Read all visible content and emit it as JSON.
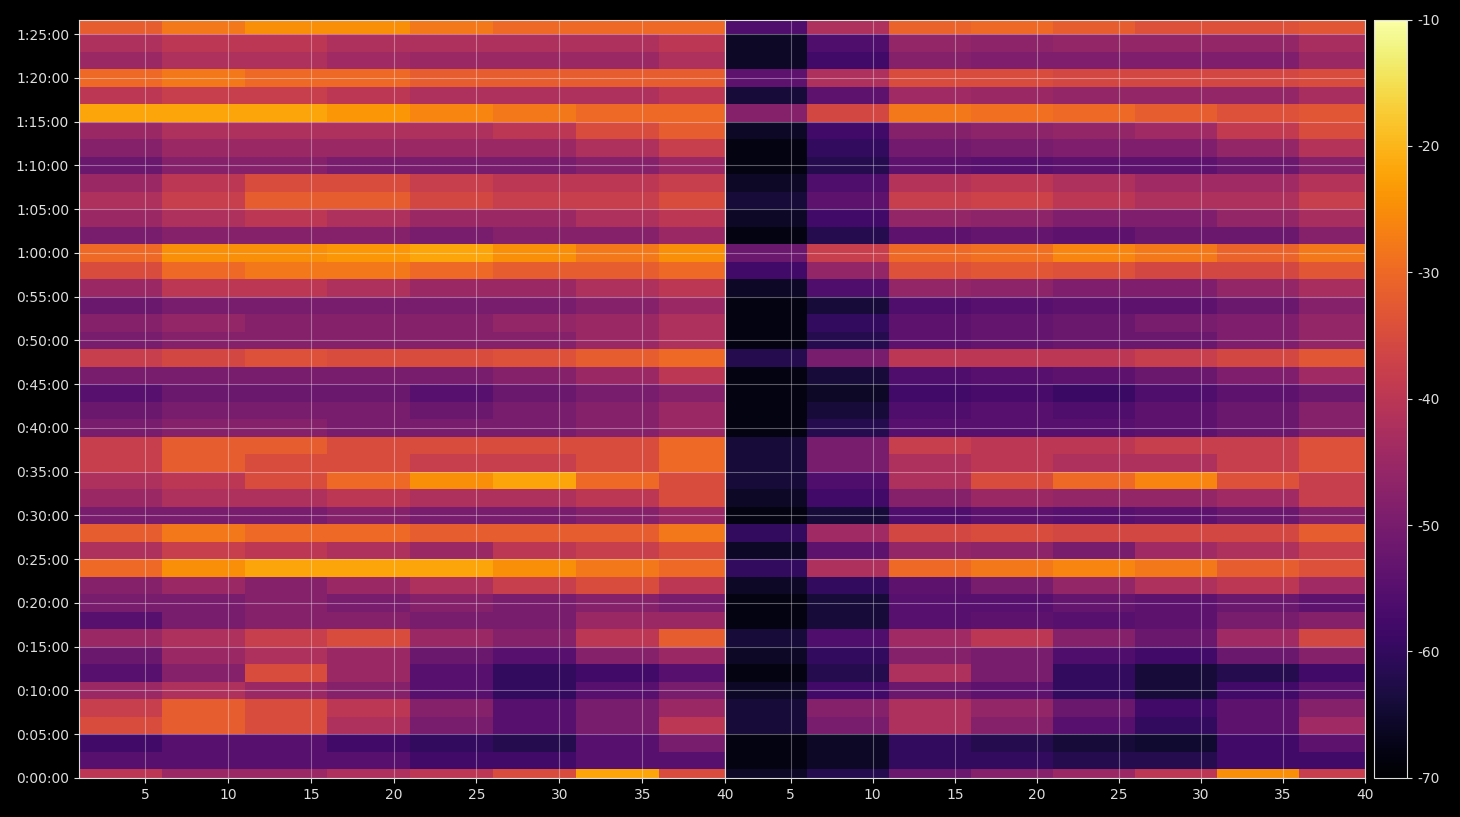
{
  "chart_data": [
    {
      "type": "heatmap",
      "color": "inferno",
      "grid": true,
      "tick_labels": true,
      "x": [
        3.5,
        8.5,
        13.5,
        18.5,
        23.5,
        28.5,
        33.5,
        38.5
      ],
      "y": [
        0,
        120,
        240,
        360,
        480,
        600,
        720,
        840,
        960,
        1080,
        1200,
        1320,
        1440,
        1560,
        1680,
        1800,
        1920,
        2040,
        2160,
        2280,
        2400,
        2520,
        2640,
        2760,
        2880,
        3000,
        3120,
        3240,
        3360,
        3480,
        3600,
        3720,
        3840,
        3960,
        4080,
        4200,
        4320,
        4440,
        4560,
        4680,
        4800,
        4920,
        5040,
        5160
      ],
      "xlim": [
        1,
        40
      ],
      "xticks": [
        5,
        10,
        15,
        20,
        25,
        30,
        35,
        40
      ],
      "ylim": [
        0,
        5200
      ],
      "yticks": [
        {
          "value": 0,
          "label": "0:00:00"
        },
        {
          "value": 300,
          "label": "0:05:00"
        },
        {
          "value": 600,
          "label": "0:10:00"
        },
        {
          "value": 900,
          "label": "0:15:00"
        },
        {
          "value": 1200,
          "label": "0:20:00"
        },
        {
          "value": 1500,
          "label": "0:25:00"
        },
        {
          "value": 1800,
          "label": "0:30:00"
        },
        {
          "value": 2100,
          "label": "0:35:00"
        },
        {
          "value": 2400,
          "label": "0:40:00"
        },
        {
          "value": 2700,
          "label": "0:45:00"
        },
        {
          "value": 3000,
          "label": "0:50:00"
        },
        {
          "value": 3300,
          "label": "0:55:00"
        },
        {
          "value": 3600,
          "label": "1:00:00"
        },
        {
          "value": 3900,
          "label": "1:05:00"
        },
        {
          "value": 4200,
          "label": "1:10:00"
        },
        {
          "value": 4500,
          "label": "1:15:00"
        },
        {
          "value": 4800,
          "label": "1:20:00"
        },
        {
          "value": 5100,
          "label": "1:25:00"
        }
      ],
      "color_range": [
        -70,
        -10
      ],
      "values": [
        [
          -40,
          -45,
          -45,
          -42,
          -40,
          -35,
          -22,
          -35
        ],
        [
          -55,
          -55,
          -55,
          -55,
          -58,
          -58,
          -55,
          -55
        ],
        [
          -58,
          -55,
          -55,
          -58,
          -60,
          -62,
          -55,
          -50
        ],
        [
          -35,
          -32,
          -35,
          -42,
          -50,
          -55,
          -50,
          -40
        ],
        [
          -38,
          -32,
          -35,
          -40,
          -48,
          -55,
          -50,
          -45
        ],
        [
          -45,
          -42,
          -45,
          -48,
          -55,
          -60,
          -55,
          -50
        ],
        [
          -55,
          -48,
          -35,
          -45,
          -55,
          -60,
          -58,
          -55
        ],
        [
          -52,
          -45,
          -42,
          -45,
          -52,
          -55,
          -48,
          -45
        ],
        [
          -45,
          -42,
          -38,
          -35,
          -45,
          -48,
          -40,
          -32
        ],
        [
          -55,
          -50,
          -48,
          -48,
          -50,
          -50,
          -45,
          -45
        ],
        [
          -50,
          -50,
          -48,
          -50,
          -48,
          -50,
          -48,
          -50
        ],
        [
          -48,
          -45,
          -48,
          -45,
          -42,
          -38,
          -35,
          -40
        ],
        [
          -30,
          -25,
          -22,
          -22,
          -22,
          -25,
          -28,
          -30
        ],
        [
          -42,
          -38,
          -40,
          -42,
          -45,
          -40,
          -38,
          -35
        ],
        [
          -32,
          -28,
          -30,
          -30,
          -32,
          -32,
          -32,
          -28
        ],
        [
          -50,
          -50,
          -50,
          -48,
          -50,
          -50,
          -48,
          -45
        ],
        [
          -45,
          -42,
          -42,
          -40,
          -42,
          -42,
          -40,
          -35
        ],
        [
          -42,
          -40,
          -35,
          -30,
          -25,
          -22,
          -30,
          -35
        ],
        [
          -38,
          -32,
          -35,
          -35,
          -38,
          -38,
          -35,
          -30
        ],
        [
          -38,
          -32,
          -32,
          -35,
          -35,
          -35,
          -35,
          -30
        ],
        [
          -50,
          -48,
          -48,
          -50,
          -50,
          -50,
          -48,
          -45
        ],
        [
          -52,
          -50,
          -50,
          -50,
          -52,
          -50,
          -48,
          -45
        ],
        [
          -55,
          -52,
          -52,
          -52,
          -55,
          -52,
          -50,
          -48
        ],
        [
          -50,
          -50,
          -50,
          -50,
          -50,
          -48,
          -45,
          -40
        ],
        [
          -38,
          -36,
          -34,
          -35,
          -35,
          -34,
          -32,
          -30
        ],
        [
          -50,
          -48,
          -48,
          -48,
          -48,
          -48,
          -45,
          -42
        ],
        [
          -48,
          -46,
          -48,
          -48,
          -48,
          -46,
          -45,
          -42
        ],
        [
          -52,
          -50,
          -50,
          -50,
          -50,
          -50,
          -48,
          -45
        ],
        [
          -45,
          -40,
          -40,
          -42,
          -45,
          -45,
          -42,
          -40
        ],
        [
          -35,
          -30,
          -28,
          -28,
          -30,
          -32,
          -32,
          -30
        ],
        [
          -30,
          -25,
          -25,
          -24,
          -22,
          -25,
          -28,
          -25
        ],
        [
          -50,
          -48,
          -48,
          -48,
          -50,
          -48,
          -48,
          -45
        ],
        [
          -45,
          -42,
          -40,
          -42,
          -45,
          -45,
          -42,
          -40
        ],
        [
          -42,
          -38,
          -32,
          -32,
          -36,
          -38,
          -38,
          -35
        ],
        [
          -45,
          -40,
          -35,
          -35,
          -38,
          -40,
          -40,
          -38
        ],
        [
          -52,
          -48,
          -48,
          -50,
          -50,
          -50,
          -48,
          -45
        ],
        [
          -48,
          -45,
          -45,
          -45,
          -45,
          -45,
          -42,
          -38
        ],
        [
          -45,
          -42,
          -42,
          -42,
          -42,
          -40,
          -35,
          -32
        ],
        [
          -22,
          -22,
          -22,
          -24,
          -26,
          -28,
          -30,
          -30
        ],
        [
          -40,
          -38,
          -38,
          -40,
          -42,
          -42,
          -42,
          -40
        ],
        [
          -30,
          -28,
          -30,
          -30,
          -32,
          -32,
          -32,
          -32
        ],
        [
          -45,
          -42,
          -42,
          -44,
          -45,
          -45,
          -45,
          -42
        ],
        [
          -42,
          -40,
          -40,
          -42,
          -42,
          -42,
          -42,
          -40
        ],
        [
          -32,
          -28,
          -25,
          -25,
          -28,
          -30,
          -30,
          -30
        ]
      ]
    },
    {
      "type": "heatmap",
      "color": "inferno",
      "grid": true,
      "tick_labels": "x",
      "x": [
        3.5,
        8.5,
        13.5,
        18.5,
        23.5,
        28.5,
        33.5,
        38.5
      ],
      "y": [
        0,
        120,
        240,
        360,
        480,
        600,
        720,
        840,
        960,
        1080,
        1200,
        1320,
        1440,
        1560,
        1680,
        1800,
        1920,
        2040,
        2160,
        2280,
        2400,
        2520,
        2640,
        2760,
        2880,
        3000,
        3120,
        3240,
        3360,
        3480,
        3600,
        3720,
        3840,
        3960,
        4080,
        4200,
        4320,
        4440,
        4560,
        4680,
        4800,
        4920,
        5040,
        5160
      ],
      "xlim": [
        1,
        40
      ],
      "xticks": [
        5,
        10,
        15,
        20,
        25,
        30,
        35,
        40
      ],
      "ylim": [
        0,
        5200
      ],
      "yticks": [
        0,
        300,
        600,
        900,
        1200,
        1500,
        1800,
        2100,
        2400,
        2700,
        3000,
        3300,
        3600,
        3900,
        4200,
        4500,
        4800,
        5100
      ],
      "color_range": [
        -70,
        -10
      ],
      "color_ticks": [
        -70,
        -60,
        -50,
        -40,
        -30,
        -20,
        -10
      ],
      "values": [
        [
          -66,
          -62,
          -52,
          -48,
          -45,
          -40,
          -25,
          -38
        ],
        [
          -68,
          -66,
          -60,
          -60,
          -62,
          -62,
          -58,
          -58
        ],
        [
          -68,
          -66,
          -60,
          -62,
          -64,
          -65,
          -58,
          -54
        ],
        [
          -64,
          -50,
          -42,
          -48,
          -55,
          -60,
          -54,
          -44
        ],
        [
          -64,
          -48,
          -42,
          -46,
          -52,
          -58,
          -54,
          -48
        ],
        [
          -66,
          -58,
          -52,
          -54,
          -60,
          -64,
          -58,
          -54
        ],
        [
          -68,
          -62,
          -42,
          -50,
          -60,
          -64,
          -62,
          -58
        ],
        [
          -66,
          -60,
          -48,
          -50,
          -56,
          -58,
          -52,
          -48
        ],
        [
          -64,
          -56,
          -44,
          -40,
          -48,
          -52,
          -44,
          -36
        ],
        [
          -68,
          -64,
          -55,
          -54,
          -55,
          -54,
          -50,
          -48
        ],
        [
          -68,
          -64,
          -55,
          -55,
          -53,
          -54,
          -52,
          -54
        ],
        [
          -66,
          -60,
          -54,
          -50,
          -46,
          -42,
          -40,
          -44
        ],
        [
          -60,
          -42,
          -30,
          -28,
          -26,
          -28,
          -32,
          -34
        ],
        [
          -66,
          -54,
          -46,
          -47,
          -50,
          -44,
          -42,
          -38
        ],
        [
          -60,
          -44,
          -36,
          -35,
          -36,
          -36,
          -36,
          -32
        ],
        [
          -68,
          -64,
          -56,
          -54,
          -55,
          -54,
          -52,
          -48
        ],
        [
          -66,
          -58,
          -48,
          -45,
          -46,
          -46,
          -44,
          -38
        ],
        [
          -64,
          -56,
          -42,
          -35,
          -30,
          -26,
          -34,
          -38
        ],
        [
          -64,
          -50,
          -42,
          -40,
          -42,
          -42,
          -38,
          -34
        ],
        [
          -64,
          -50,
          -38,
          -40,
          -40,
          -38,
          -38,
          -34
        ],
        [
          -68,
          -62,
          -55,
          -55,
          -55,
          -54,
          -52,
          -48
        ],
        [
          -68,
          -64,
          -56,
          -55,
          -56,
          -54,
          -52,
          -48
        ],
        [
          -68,
          -66,
          -58,
          -57,
          -59,
          -56,
          -54,
          -52
        ],
        [
          -68,
          -64,
          -56,
          -55,
          -54,
          -52,
          -49,
          -44
        ],
        [
          -62,
          -50,
          -40,
          -40,
          -40,
          -38,
          -36,
          -33
        ],
        [
          -68,
          -62,
          -54,
          -53,
          -52,
          -52,
          -49,
          -46
        ],
        [
          -68,
          -60,
          -54,
          -53,
          -52,
          -50,
          -49,
          -46
        ],
        [
          -68,
          -64,
          -56,
          -55,
          -54,
          -54,
          -52,
          -48
        ],
        [
          -66,
          -56,
          -46,
          -47,
          -49,
          -49,
          -46,
          -43
        ],
        [
          -58,
          -46,
          -34,
          -33,
          -34,
          -36,
          -36,
          -33
        ],
        [
          -52,
          -38,
          -30,
          -29,
          -26,
          -28,
          -31,
          -28
        ],
        [
          -68,
          -62,
          -54,
          -53,
          -54,
          -52,
          -52,
          -48
        ],
        [
          -66,
          -58,
          -46,
          -47,
          -49,
          -49,
          -46,
          -43
        ],
        [
          -64,
          -54,
          -38,
          -37,
          -40,
          -42,
          -42,
          -38
        ],
        [
          -66,
          -56,
          -41,
          -40,
          -42,
          -44,
          -44,
          -41
        ],
        [
          -68,
          -62,
          -54,
          -55,
          -54,
          -54,
          -52,
          -48
        ],
        [
          -68,
          -60,
          -51,
          -50,
          -49,
          -49,
          -46,
          -41
        ],
        [
          -66,
          -58,
          -48,
          -47,
          -46,
          -44,
          -39,
          -35
        ],
        [
          -48,
          -36,
          -28,
          -29,
          -30,
          -32,
          -34,
          -33
        ],
        [
          -64,
          -54,
          -44,
          -45,
          -46,
          -46,
          -46,
          -43
        ],
        [
          -54,
          -42,
          -35,
          -35,
          -36,
          -36,
          -36,
          -35
        ],
        [
          -66,
          -58,
          -48,
          -49,
          -49,
          -49,
          -49,
          -45
        ],
        [
          -66,
          -56,
          -46,
          -47,
          -46,
          -46,
          -46,
          -43
        ],
        [
          -56,
          -42,
          -31,
          -30,
          -32,
          -34,
          -34,
          -33
        ]
      ]
    }
  ]
}
